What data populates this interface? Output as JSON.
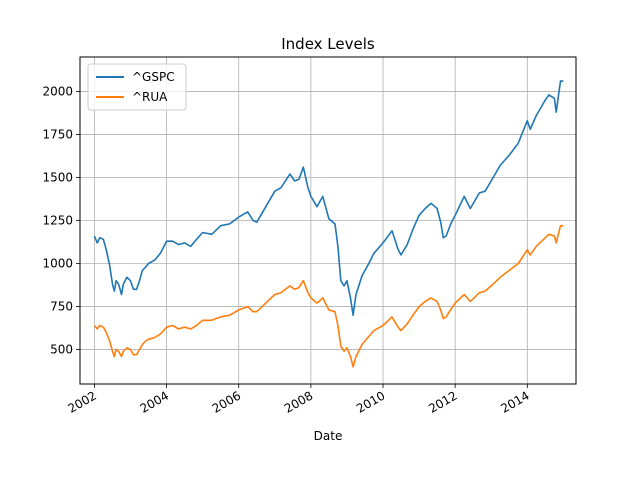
{
  "chart_data": {
    "type": "line",
    "title": "Index Levels",
    "xlabel": "Date",
    "ylabel": "",
    "xlim": [
      2001.6,
      2015.35
    ],
    "ylim": [
      300,
      2200
    ],
    "x_ticks": [
      2002,
      2004,
      2006,
      2008,
      2010,
      2012,
      2014
    ],
    "x_tick_labels": [
      "2002",
      "2004",
      "2006",
      "2008",
      "2010",
      "2012",
      "2014"
    ],
    "y_ticks": [
      500,
      750,
      1000,
      1250,
      1500,
      1750,
      2000
    ],
    "y_tick_labels": [
      "500",
      "750",
      "1000",
      "1250",
      "1500",
      "1750",
      "2000"
    ],
    "grid": true,
    "legend_position": "top-left",
    "series": [
      {
        "name": "^GSPC",
        "color": "#1f77b4",
        "x": [
          2002.0,
          2002.08,
          2002.15,
          2002.25,
          2002.33,
          2002.42,
          2002.5,
          2002.55,
          2002.6,
          2002.67,
          2002.75,
          2002.8,
          2002.9,
          2003.0,
          2003.08,
          2003.17,
          2003.25,
          2003.33,
          2003.42,
          2003.5,
          2003.67,
          2003.83,
          2004.0,
          2004.17,
          2004.33,
          2004.5,
          2004.67,
          2004.83,
          2005.0,
          2005.25,
          2005.5,
          2005.75,
          2006.0,
          2006.25,
          2006.4,
          2006.5,
          2006.75,
          2007.0,
          2007.17,
          2007.42,
          2007.55,
          2007.67,
          2007.79,
          2007.92,
          2008.0,
          2008.17,
          2008.33,
          2008.5,
          2008.67,
          2008.75,
          2008.83,
          2008.92,
          2009.0,
          2009.1,
          2009.17,
          2009.25,
          2009.42,
          2009.58,
          2009.75,
          2010.0,
          2010.25,
          2010.42,
          2010.5,
          2010.67,
          2010.83,
          2011.0,
          2011.17,
          2011.33,
          2011.5,
          2011.6,
          2011.67,
          2011.75,
          2011.9,
          2012.0,
          2012.25,
          2012.42,
          2012.67,
          2012.83,
          2013.0,
          2013.25,
          2013.5,
          2013.75,
          2014.0,
          2014.08,
          2014.25,
          2014.5,
          2014.6,
          2014.75,
          2014.8,
          2014.92,
          2015.0
        ],
        "values": [
          1160,
          1120,
          1150,
          1140,
          1080,
          990,
          880,
          840,
          900,
          880,
          820,
          880,
          920,
          900,
          850,
          850,
          900,
          960,
          980,
          1000,
          1020,
          1060,
          1130,
          1130,
          1110,
          1120,
          1100,
          1140,
          1180,
          1170,
          1220,
          1230,
          1270,
          1300,
          1250,
          1240,
          1330,
          1420,
          1440,
          1520,
          1480,
          1490,
          1560,
          1440,
          1390,
          1330,
          1390,
          1260,
          1230,
          1100,
          900,
          870,
          900,
          800,
          700,
          820,
          930,
          990,
          1060,
          1120,
          1190,
          1080,
          1050,
          1110,
          1200,
          1280,
          1320,
          1350,
          1320,
          1240,
          1150,
          1160,
          1240,
          1280,
          1390,
          1320,
          1410,
          1420,
          1480,
          1570,
          1630,
          1700,
          1830,
          1780,
          1860,
          1950,
          1980,
          1960,
          1880,
          2060,
          2060
        ]
      },
      {
        "name": "^RUA",
        "color": "#ff7f0e",
        "x": [
          2002.0,
          2002.08,
          2002.15,
          2002.25,
          2002.33,
          2002.42,
          2002.5,
          2002.55,
          2002.6,
          2002.67,
          2002.75,
          2002.8,
          2002.9,
          2003.0,
          2003.08,
          2003.17,
          2003.25,
          2003.33,
          2003.42,
          2003.5,
          2003.67,
          2003.83,
          2004.0,
          2004.17,
          2004.33,
          2004.5,
          2004.67,
          2004.83,
          2005.0,
          2005.25,
          2005.5,
          2005.75,
          2006.0,
          2006.25,
          2006.4,
          2006.5,
          2006.75,
          2007.0,
          2007.17,
          2007.42,
          2007.55,
          2007.67,
          2007.79,
          2007.92,
          2008.0,
          2008.17,
          2008.33,
          2008.5,
          2008.67,
          2008.75,
          2008.83,
          2008.92,
          2009.0,
          2009.1,
          2009.17,
          2009.25,
          2009.42,
          2009.58,
          2009.75,
          2010.0,
          2010.25,
          2010.42,
          2010.5,
          2010.67,
          2010.83,
          2011.0,
          2011.17,
          2011.33,
          2011.5,
          2011.6,
          2011.67,
          2011.75,
          2011.9,
          2012.0,
          2012.25,
          2012.42,
          2012.67,
          2012.83,
          2013.0,
          2013.25,
          2013.5,
          2013.75,
          2014.0,
          2014.08,
          2014.25,
          2014.5,
          2014.6,
          2014.75,
          2014.8,
          2014.92,
          2015.0
        ],
        "values": [
          640,
          620,
          640,
          630,
          600,
          550,
          490,
          460,
          500,
          490,
          460,
          490,
          510,
          500,
          470,
          470,
          500,
          530,
          550,
          560,
          570,
          590,
          630,
          640,
          620,
          630,
          620,
          640,
          670,
          670,
          690,
          700,
          730,
          750,
          720,
          720,
          770,
          820,
          830,
          870,
          850,
          860,
          900,
          830,
          800,
          770,
          800,
          730,
          720,
          640,
          520,
          490,
          510,
          460,
          400,
          460,
          530,
          570,
          610,
          640,
          690,
          630,
          610,
          650,
          700,
          750,
          780,
          800,
          780,
          730,
          680,
          690,
          740,
          770,
          820,
          780,
          830,
          840,
          870,
          920,
          960,
          1000,
          1080,
          1050,
          1100,
          1150,
          1170,
          1160,
          1120,
          1220,
          1220
        ]
      }
    ]
  }
}
